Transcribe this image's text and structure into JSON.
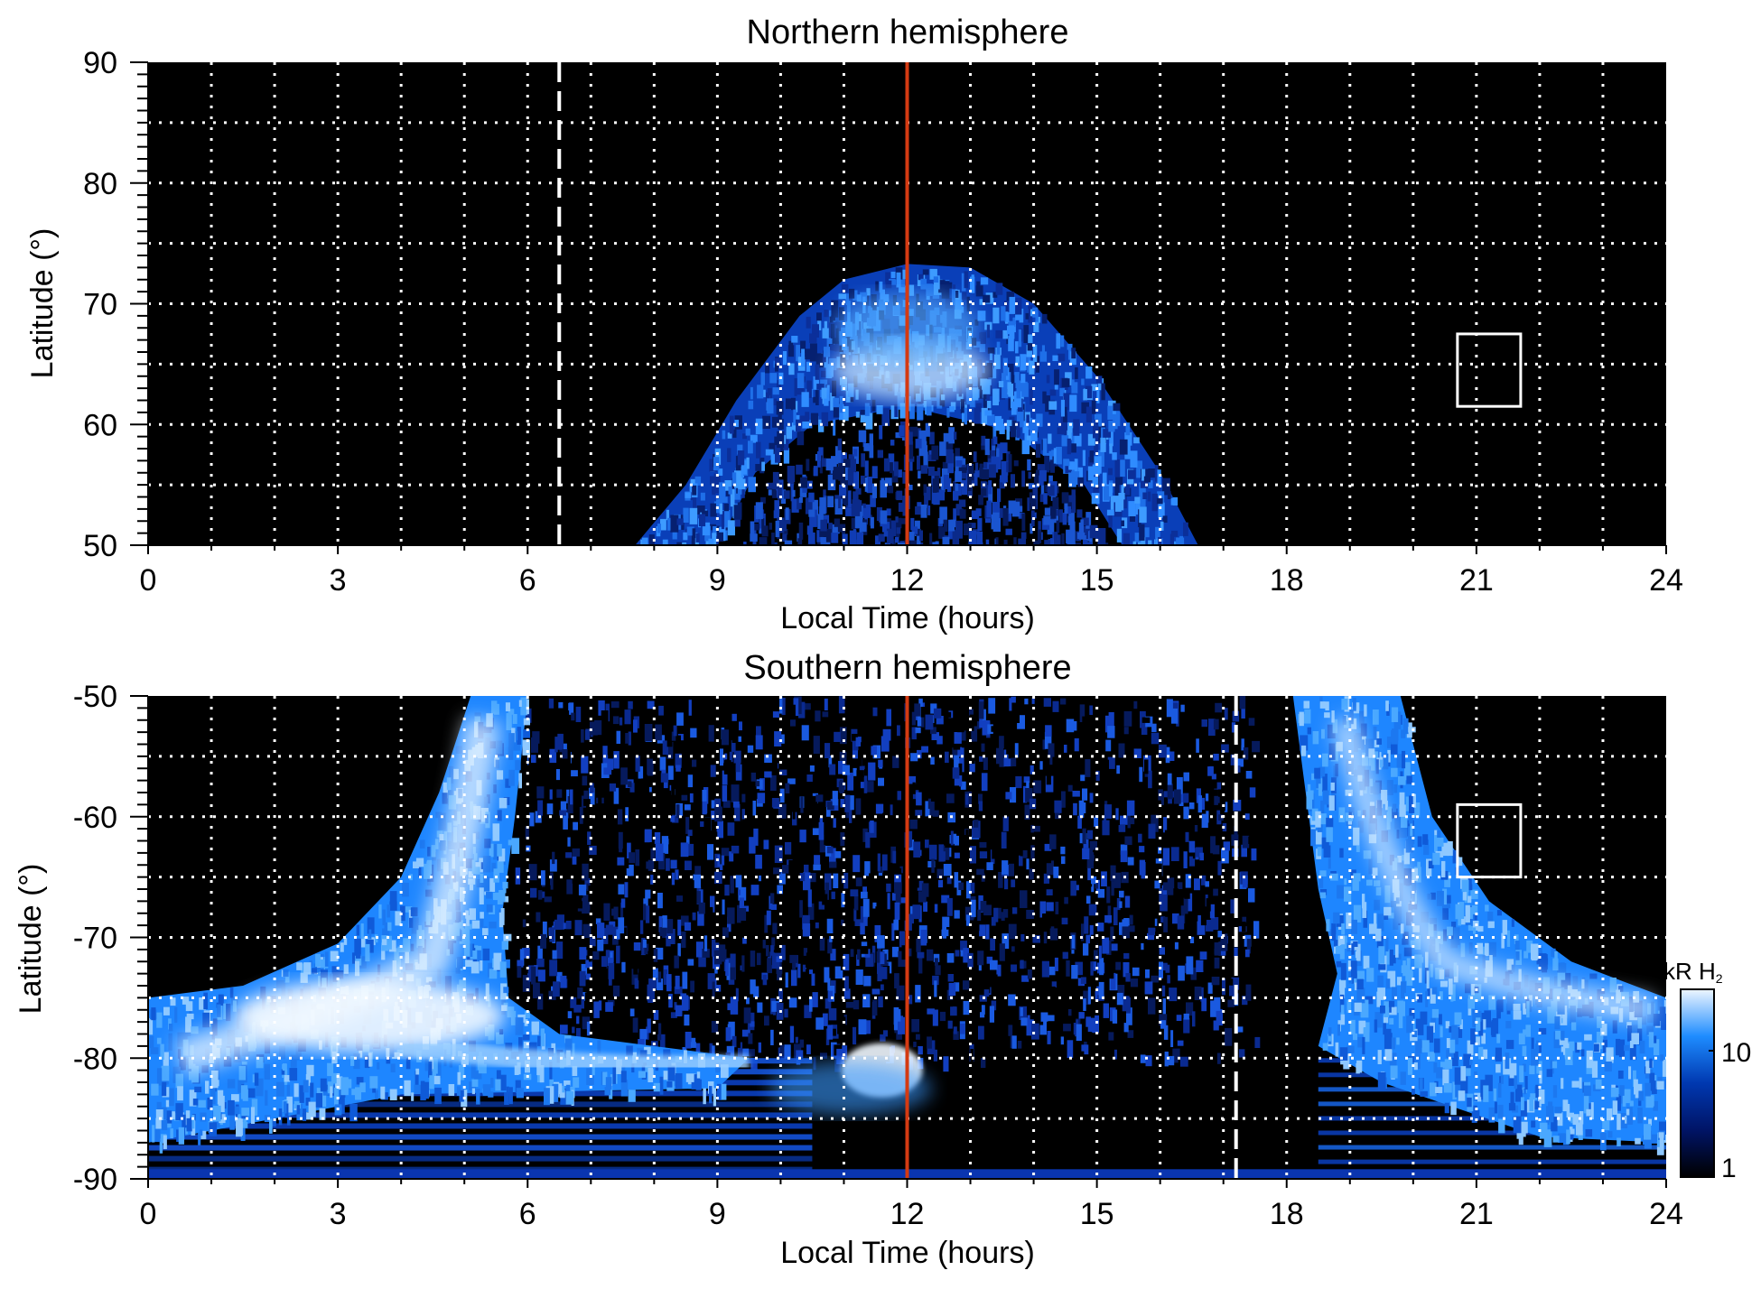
{
  "chart_data": [
    {
      "type": "heatmap",
      "title": "Northern hemisphere",
      "xlabel": "Local Time (hours)",
      "ylabel": "Latitude (°)",
      "xlim": [
        0,
        24
      ],
      "ylim": [
        50,
        90
      ],
      "xticks": [
        "0",
        "3",
        "6",
        "9",
        "12",
        "15",
        "18",
        "21",
        "24"
      ],
      "yticks": [
        "90",
        "80",
        "70",
        "60",
        "50"
      ],
      "grid": true,
      "noon_line_lt": 12,
      "dashed_line_lt": 6.5,
      "box": {
        "lt": [
          20.7,
          21.7
        ],
        "lat": [
          61.5,
          67.5
        ]
      },
      "oval_outer": [
        [
          7.7,
          50
        ],
        [
          8.5,
          55
        ],
        [
          9.3,
          62
        ],
        [
          10.3,
          69
        ],
        [
          11,
          72
        ],
        [
          12,
          73.3
        ],
        [
          13,
          73
        ],
        [
          14,
          70
        ],
        [
          15,
          64
        ],
        [
          16,
          56
        ],
        [
          16.6,
          50
        ]
      ],
      "oval_inner": [
        [
          15.4,
          50
        ],
        [
          14.8,
          55
        ],
        [
          13.6,
          59.5
        ],
        [
          12,
          61.5
        ],
        [
          10.5,
          60
        ],
        [
          9.6,
          56
        ],
        [
          9,
          50
        ]
      ],
      "bright_region": {
        "lt": [
          10.8,
          13.3
        ],
        "lat": [
          62,
          67
        ]
      }
    },
    {
      "type": "heatmap",
      "title": "Southern hemisphere",
      "xlabel": "Local Time (hours)",
      "ylabel": "Latitude (°)",
      "xlim": [
        0,
        24
      ],
      "ylim": [
        -90,
        -50
      ],
      "xticks": [
        "0",
        "3",
        "6",
        "9",
        "12",
        "15",
        "18",
        "21",
        "24"
      ],
      "yticks": [
        "-50",
        "-60",
        "-70",
        "-80",
        "-90"
      ],
      "grid": true,
      "noon_line_lt": 12,
      "dashed_line_lt": 17.2,
      "box": {
        "lt": [
          20.7,
          21.7
        ],
        "lat": [
          -65,
          -59
        ]
      },
      "left_band_outer": [
        [
          0,
          -75
        ],
        [
          1.5,
          -74
        ],
        [
          3,
          -70.5
        ],
        [
          4,
          -65
        ],
        [
          4.6,
          -58
        ],
        [
          5.1,
          -50
        ]
      ],
      "left_band_inner": [
        [
          6,
          -50
        ],
        [
          5.8,
          -60
        ],
        [
          5.6,
          -68
        ],
        [
          5.7,
          -75
        ],
        [
          6.5,
          -78
        ]
      ],
      "right_band_inner": [
        [
          18.1,
          -50
        ],
        [
          18.3,
          -58
        ],
        [
          18.5,
          -66
        ],
        [
          18.8,
          -73
        ],
        [
          18.5,
          -79
        ]
      ],
      "right_band_outer": [
        [
          19.8,
          -50
        ],
        [
          20.3,
          -60
        ],
        [
          21.2,
          -67
        ],
        [
          22.5,
          -72
        ],
        [
          24,
          -75
        ]
      ],
      "bright_spot": {
        "lt": 11.6,
        "lat": -80
      }
    }
  ],
  "colorbar": {
    "label": "kR H",
    "label_sub": "2",
    "ticks": [
      "10",
      "1"
    ],
    "range": [
      1,
      30
    ],
    "scale": "log",
    "colors": [
      "#000000",
      "#001a66",
      "#0050d0",
      "#1e90ff",
      "#e8f4ff"
    ]
  },
  "colors": {
    "noon_line": "#d43a12",
    "grid": "#ffffff",
    "background": "#000000"
  }
}
